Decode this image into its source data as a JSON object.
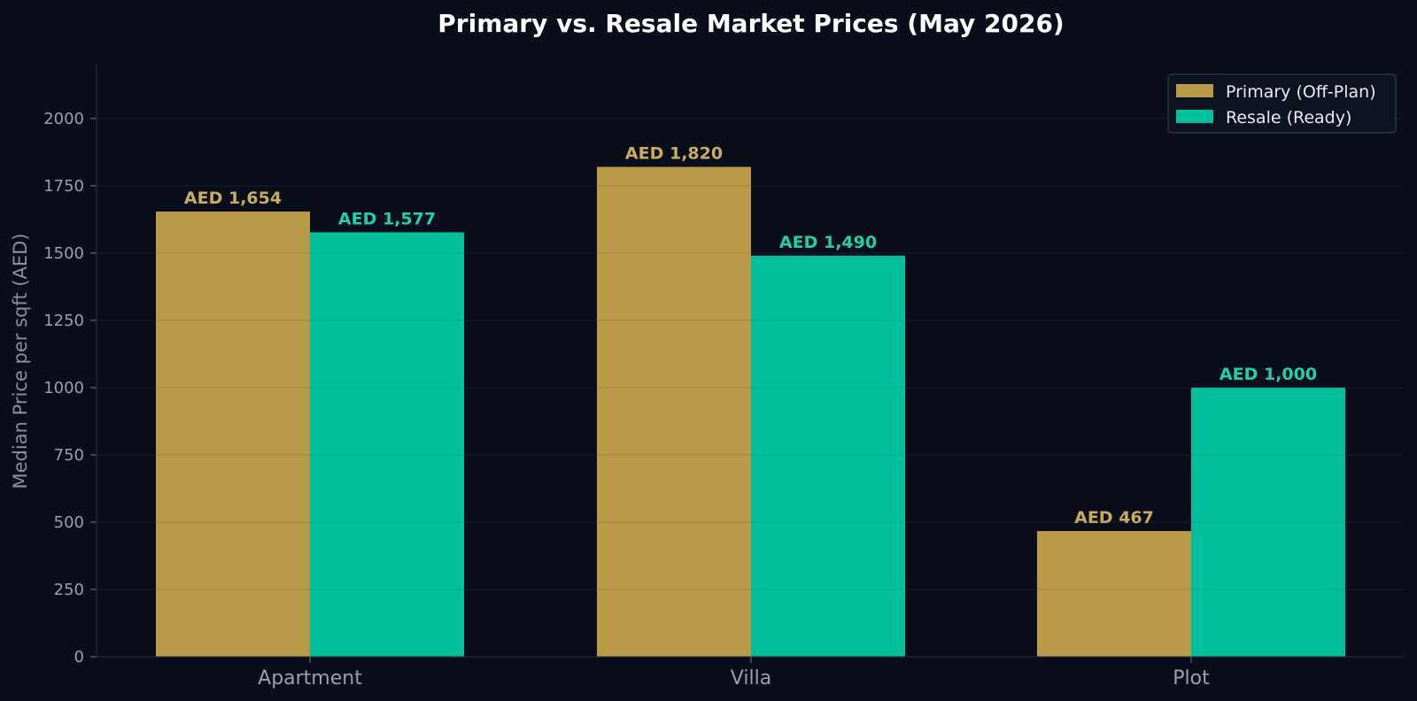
{
  "chart_data": {
    "type": "bar",
    "title": "Primary vs. Resale Market Prices (May 2026)",
    "xlabel": "",
    "ylabel": "Median Price per sqft (AED)",
    "ylim": [
      0,
      2200
    ],
    "yticks": [
      0,
      250,
      500,
      750,
      1000,
      1250,
      1500,
      1750,
      2000
    ],
    "categories": [
      "Apartment",
      "Villa",
      "Plot"
    ],
    "series": [
      {
        "name": "Primary (Off-Plan)",
        "color": "#b89a48",
        "values": [
          1654,
          1820,
          467
        ],
        "labels": [
          "AED 1,654",
          "AED 1,820",
          "AED 467"
        ]
      },
      {
        "name": "Resale (Ready)",
        "color": "#00bf9a",
        "values": [
          1577,
          1490,
          1000
        ],
        "labels": [
          "AED 1,577",
          "AED 1,490",
          "AED 1,000"
        ]
      }
    ],
    "grid": true,
    "legend": "top-right"
  },
  "colors": {
    "background": "#0a0e1a",
    "grid": "#1b2030",
    "axis": "#2a2f3c",
    "primary_label": "#c9ad5e",
    "resale_label": "#1fd1aa"
  }
}
